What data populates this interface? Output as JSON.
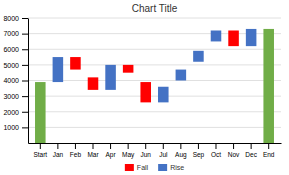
{
  "chart_data": {
    "type": "waterfall",
    "title": "Chart Title",
    "categories": [
      "Start",
      "Jan",
      "Feb",
      "Mar",
      "Apr",
      "May",
      "Jun",
      "Jul",
      "Aug",
      "Sep",
      "Oct",
      "Nov",
      "Dec",
      "End"
    ],
    "bottoms": [
      0,
      3900,
      4700,
      3400,
      3400,
      4500,
      2600,
      2600,
      4000,
      5200,
      6500,
      6200,
      6200,
      0
    ],
    "values": [
      3900,
      5500,
      5500,
      4200,
      5000,
      5000,
      3900,
      3600,
      4700,
      5900,
      7200,
      7200,
      7300,
      7300
    ],
    "colors": [
      "#70ad47",
      "#4472c4",
      "#ff0000",
      "#ff0000",
      "#4472c4",
      "#ff0000",
      "#ff0000",
      "#4472c4",
      "#4472c4",
      "#4472c4",
      "#4472c4",
      "#ff0000",
      "#4472c4",
      "#70ad47"
    ],
    "legend_entries": [
      {
        "name": "Fall",
        "color": "#ff0000"
      },
      {
        "name": "Rise",
        "color": "#4472c4"
      }
    ],
    "legend": "bottom",
    "ylim": [
      0,
      8000
    ],
    "yticks": [
      1000,
      2000,
      3000,
      4000,
      5000,
      6000,
      7000,
      8000
    ],
    "grid": true
  }
}
